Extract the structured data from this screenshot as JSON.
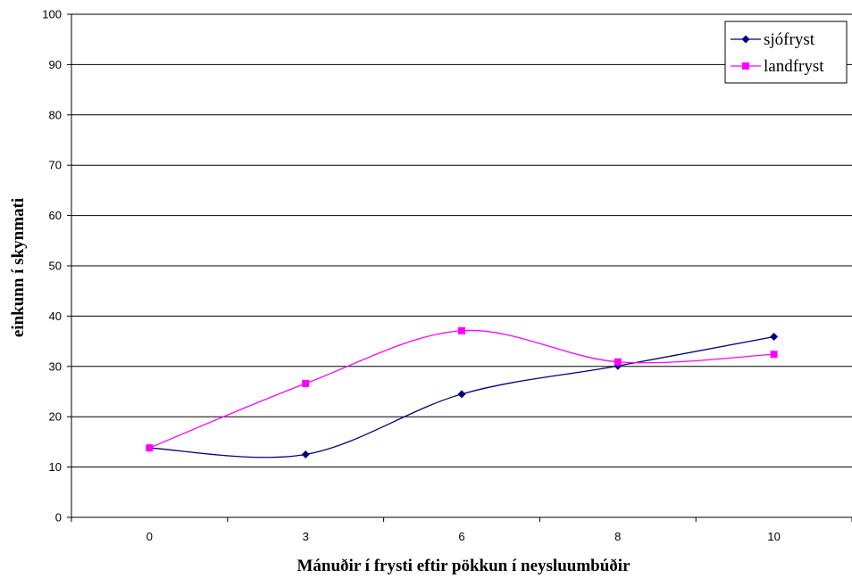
{
  "chart_data": {
    "type": "line",
    "categories": [
      "0",
      "3",
      "6",
      "8",
      "10"
    ],
    "series": [
      {
        "name": "sjófryst",
        "values": [
          13.8,
          12.5,
          24.5,
          30.1,
          35.9
        ],
        "color": "#000080",
        "marker": "diamond"
      },
      {
        "name": "landfryst",
        "values": [
          13.8,
          26.6,
          37.1,
          30.9,
          32.4
        ],
        "color": "#ff00ff",
        "marker": "square"
      }
    ],
    "xlabel": "Mánuðir í frysti eftir pökkun í neysluumbúðir",
    "ylabel": "einkunn í skynmati",
    "ylim": [
      0,
      100
    ],
    "yticks": [
      0,
      10,
      20,
      30,
      40,
      50,
      60,
      70,
      80,
      90,
      100
    ],
    "grid": true,
    "legend": "top-right"
  }
}
